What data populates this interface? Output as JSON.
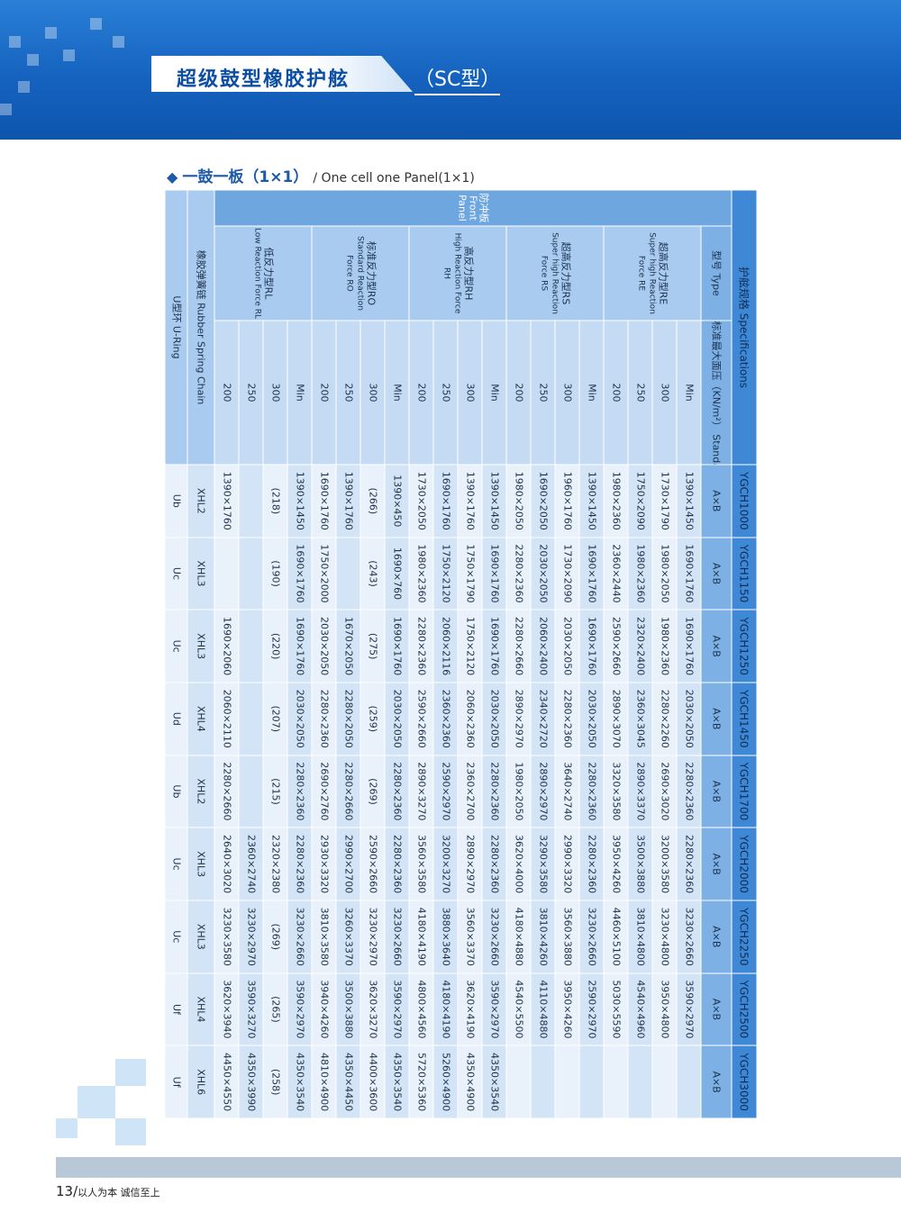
{
  "header": {
    "title": "超级鼓型橡胶护舷",
    "subtitle": "（SC型）"
  },
  "section": {
    "title_cn": "一鼓一板（1×1）",
    "title_en": "/ One cell one Panel(1×1)"
  },
  "table": {
    "spec_label": "护舷规格 Specifications",
    "models": [
      "YGCH1000",
      "YGCH1150",
      "YGCH1250",
      "YGCH1450",
      "YGCH1700",
      "YGCH2000",
      "YGCH2250",
      "YGCH2500",
      "YGCH3000"
    ],
    "type_label": "型号 Type",
    "pressure_label": "标准最大面压（KN/m²） Standard Max Surface Pressure",
    "dimension_label": "A×B",
    "front_panel_label": "防冲板 Front Panel",
    "groups": [
      {
        "label_cn": "超高反力型RE",
        "label_en": "Super high Reaction Force RE",
        "rows": [
          {
            "pressure": "Min",
            "cells": [
              "1390×1450",
              "1690×1760",
              "1690×1760",
              "2030×2050",
              "2280×2360",
              "2280×2360",
              "3230×2660",
              "3590×2970",
              null
            ]
          },
          {
            "pressure": 300,
            "cells": [
              "1730×1790",
              "1980×2050",
              "1980×2360",
              "2280×2260",
              "2690×3020",
              "3200×3580",
              "3230×4800",
              "3950×4800",
              null
            ]
          },
          {
            "pressure": 250,
            "cells": [
              "1750×2090",
              "1980×2360",
              "2320×2400",
              "2360×3045",
              "2890×3370",
              "3500×3880",
              "3810×4800",
              "4540×4960",
              null
            ]
          },
          {
            "pressure": 200,
            "cells": [
              "1980×2360",
              "2360×2440",
              "2590×2660",
              "2890×3070",
              "3320×3580",
              "3950×4260",
              "4460×5100",
              "5030×5590",
              null
            ]
          }
        ]
      },
      {
        "label_cn": "超高反力型RS",
        "label_en": "Super high Reaction Force RS",
        "rows": [
          {
            "pressure": "Min",
            "cells": [
              "1390×1450",
              "1690×1760",
              "1690×1760",
              "2030×2050",
              "2280×2360",
              "2280×2360",
              "3230×2660",
              "2590×2970",
              null
            ]
          },
          {
            "pressure": 300,
            "cells": [
              "1960×1760",
              "1730×2090",
              "2030×2050",
              "2280×2360",
              "3640×2740",
              "2990×3320",
              "3560×3880",
              "3950×4260",
              null
            ]
          },
          {
            "pressure": 250,
            "cells": [
              "1690×2050",
              "2030×2050",
              "2060×2400",
              "2340×2720",
              "2890×2970",
              "3290×3580",
              "3810×4260",
              "4110×4880",
              null
            ]
          },
          {
            "pressure": 200,
            "cells": [
              "1980×2050",
              "2280×2360",
              "2280×2660",
              "2890×2970",
              "1980×2050",
              "3620×4000",
              "4180×4880",
              "4540×5500",
              null
            ]
          }
        ]
      },
      {
        "label_cn": "高反力型RH",
        "label_en": "High Reaction Force RH",
        "rows": [
          {
            "pressure": "Min",
            "cells": [
              "1390×1450",
              "1690×1760",
              "1690×1760",
              "2030×2050",
              "2280×2360",
              "2280×2360",
              "3230×2660",
              "3590×2970",
              "4350×3540"
            ]
          },
          {
            "pressure": 300,
            "cells": [
              "1390×1760",
              "1750×1790",
              "1750×2120",
              "2060×2360",
              "2360×2700",
              "2890×2970",
              "3560×3370",
              "3620×4190",
              "4350×4900"
            ]
          },
          {
            "pressure": 250,
            "cells": [
              "1690×1760",
              "1750×2120",
              "2060×2116",
              "2360×2360",
              "2590×2970",
              "3200×3270",
              "3880×3640",
              "4180×4190",
              "5260×4900"
            ]
          },
          {
            "pressure": 200,
            "cells": [
              "1730×2050",
              "1980×2360",
              "2280×2360",
              "2590×2660",
              "2890×3270",
              "3560×3580",
              "4180×4190",
              "4800×4560",
              "5720×5360"
            ]
          }
        ]
      },
      {
        "label_cn": "标准反力型RO",
        "label_en": "Standard Reaction Force RO",
        "rows": [
          {
            "pressure": "Min",
            "cells": [
              "1390×450",
              "1690×760",
              "1690×1760",
              "2030×2050",
              "2280×2360",
              "2280×2360",
              "3230×2660",
              "3590×2970",
              "4350×3540"
            ]
          },
          {
            "pressure": 300,
            "cells": [
              "(266)",
              "(243)",
              "(275)",
              "(259)",
              "(269)",
              "2590×2660",
              "3230×2970",
              "3620×3270",
              "4400×3600"
            ]
          },
          {
            "pressure": 250,
            "cells": [
              "1390×1760",
              null,
              "1670×2050",
              "2280×2050",
              "2280×2660",
              "2990×2700",
              "3260×3370",
              "3500×3880",
              "4350×4450"
            ]
          },
          {
            "pressure": 200,
            "cells": [
              "1690×1760",
              "1750×2000",
              "2030×2050",
              "2280×2360",
              "2690×2760",
              "2930×3320",
              "3810×3580",
              "3940×4260",
              "4810×4900"
            ]
          }
        ]
      },
      {
        "label_cn": "低反力型RL",
        "label_en": "Low Reaction Force RL",
        "rows": [
          {
            "pressure": "Min",
            "cells": [
              "1390×1450",
              "1690×1760",
              "1690×1760",
              "2030×2050",
              "2280×2360",
              "2280×2360",
              "3230×2660",
              "3590×2970",
              "4350×3540"
            ]
          },
          {
            "pressure": 300,
            "cells": [
              "(218)",
              "(190)",
              "(220)",
              "(207)",
              "(215)",
              "2320×2380",
              "(269)",
              "(265)",
              "(258)"
            ]
          },
          {
            "pressure": 250,
            "cells": [
              null,
              null,
              null,
              null,
              null,
              "2360×2740",
              "3230×2970",
              "3590×3270",
              "4350×3990"
            ]
          },
          {
            "pressure": 200,
            "cells": [
              "1390×1760",
              null,
              "1690×2060",
              "2060×2110",
              "2280×2660",
              "2640×3020",
              "3230×3580",
              "3620×3940",
              "4450×4550"
            ]
          }
        ]
      }
    ],
    "chain": {
      "label": "橡胶弹簧链 Rubber Spring Chain",
      "cells": [
        "XHL2",
        "XHL3",
        "XHL3",
        "XHL4",
        "XHL2",
        "XHL3",
        "XHL3",
        "XHL4",
        "XHL6"
      ]
    },
    "ring": {
      "label": "U型环 U-Ring",
      "cells": [
        "Ub",
        "Uc",
        "Uc",
        "Ud",
        "Ub",
        "Uc",
        "Uc",
        "Uf",
        "Uf"
      ]
    }
  },
  "footer": {
    "page": "13",
    "slogan": "以人为本 诚信至上"
  }
}
